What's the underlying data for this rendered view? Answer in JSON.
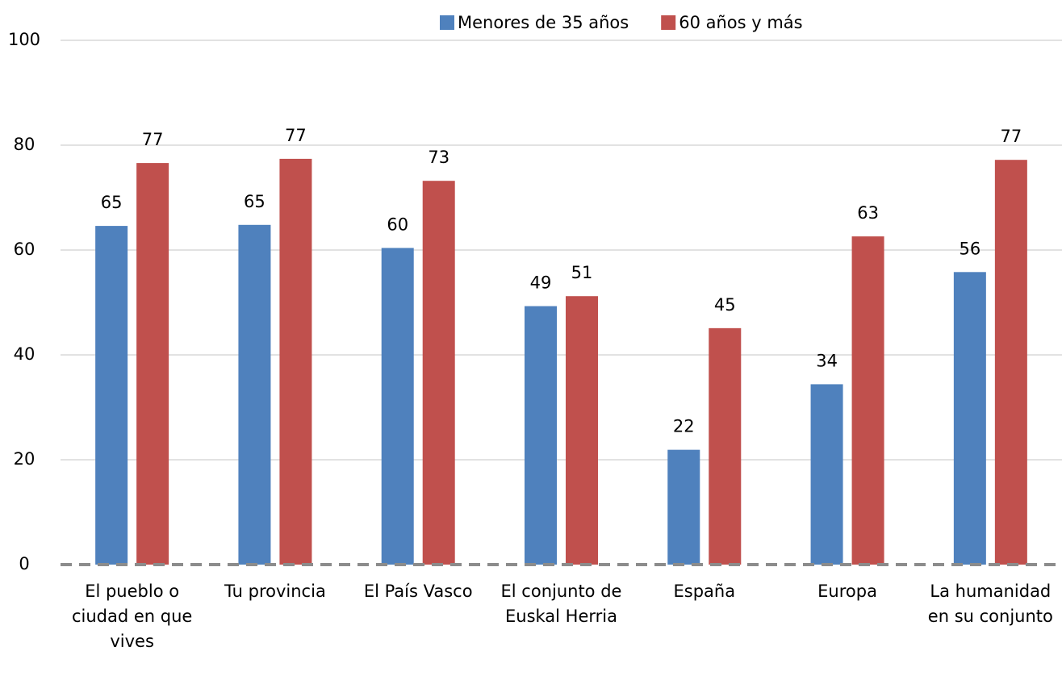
{
  "chart_data": {
    "type": "bar",
    "categories": [
      "El pueblo o ciudad en que vives",
      "Tu provincia",
      "El País Vasco",
      "El conjunto de Euskal Herria",
      "España",
      "Europa",
      "La humanidad en su conjunto"
    ],
    "series": [
      {
        "name": "Menores de 35 años",
        "color": "#4f81bd",
        "values": [
          64.6,
          64.8,
          60.4,
          49.3,
          21.9,
          34.4,
          55.8
        ],
        "value_labels": [
          "65",
          "65",
          "60",
          "49",
          "22",
          "34",
          "56"
        ]
      },
      {
        "name": "60 años y más",
        "color": "#c0504d",
        "values": [
          76.6,
          77.4,
          73.2,
          51.2,
          45.1,
          62.6,
          77.2
        ],
        "value_labels": [
          "77",
          "77",
          "73",
          "51",
          "45",
          "63",
          "77"
        ]
      }
    ],
    "ylim": [
      0,
      100
    ],
    "yticks": [
      0,
      20,
      40,
      60,
      80,
      100
    ],
    "grid": true,
    "legend": "top"
  }
}
